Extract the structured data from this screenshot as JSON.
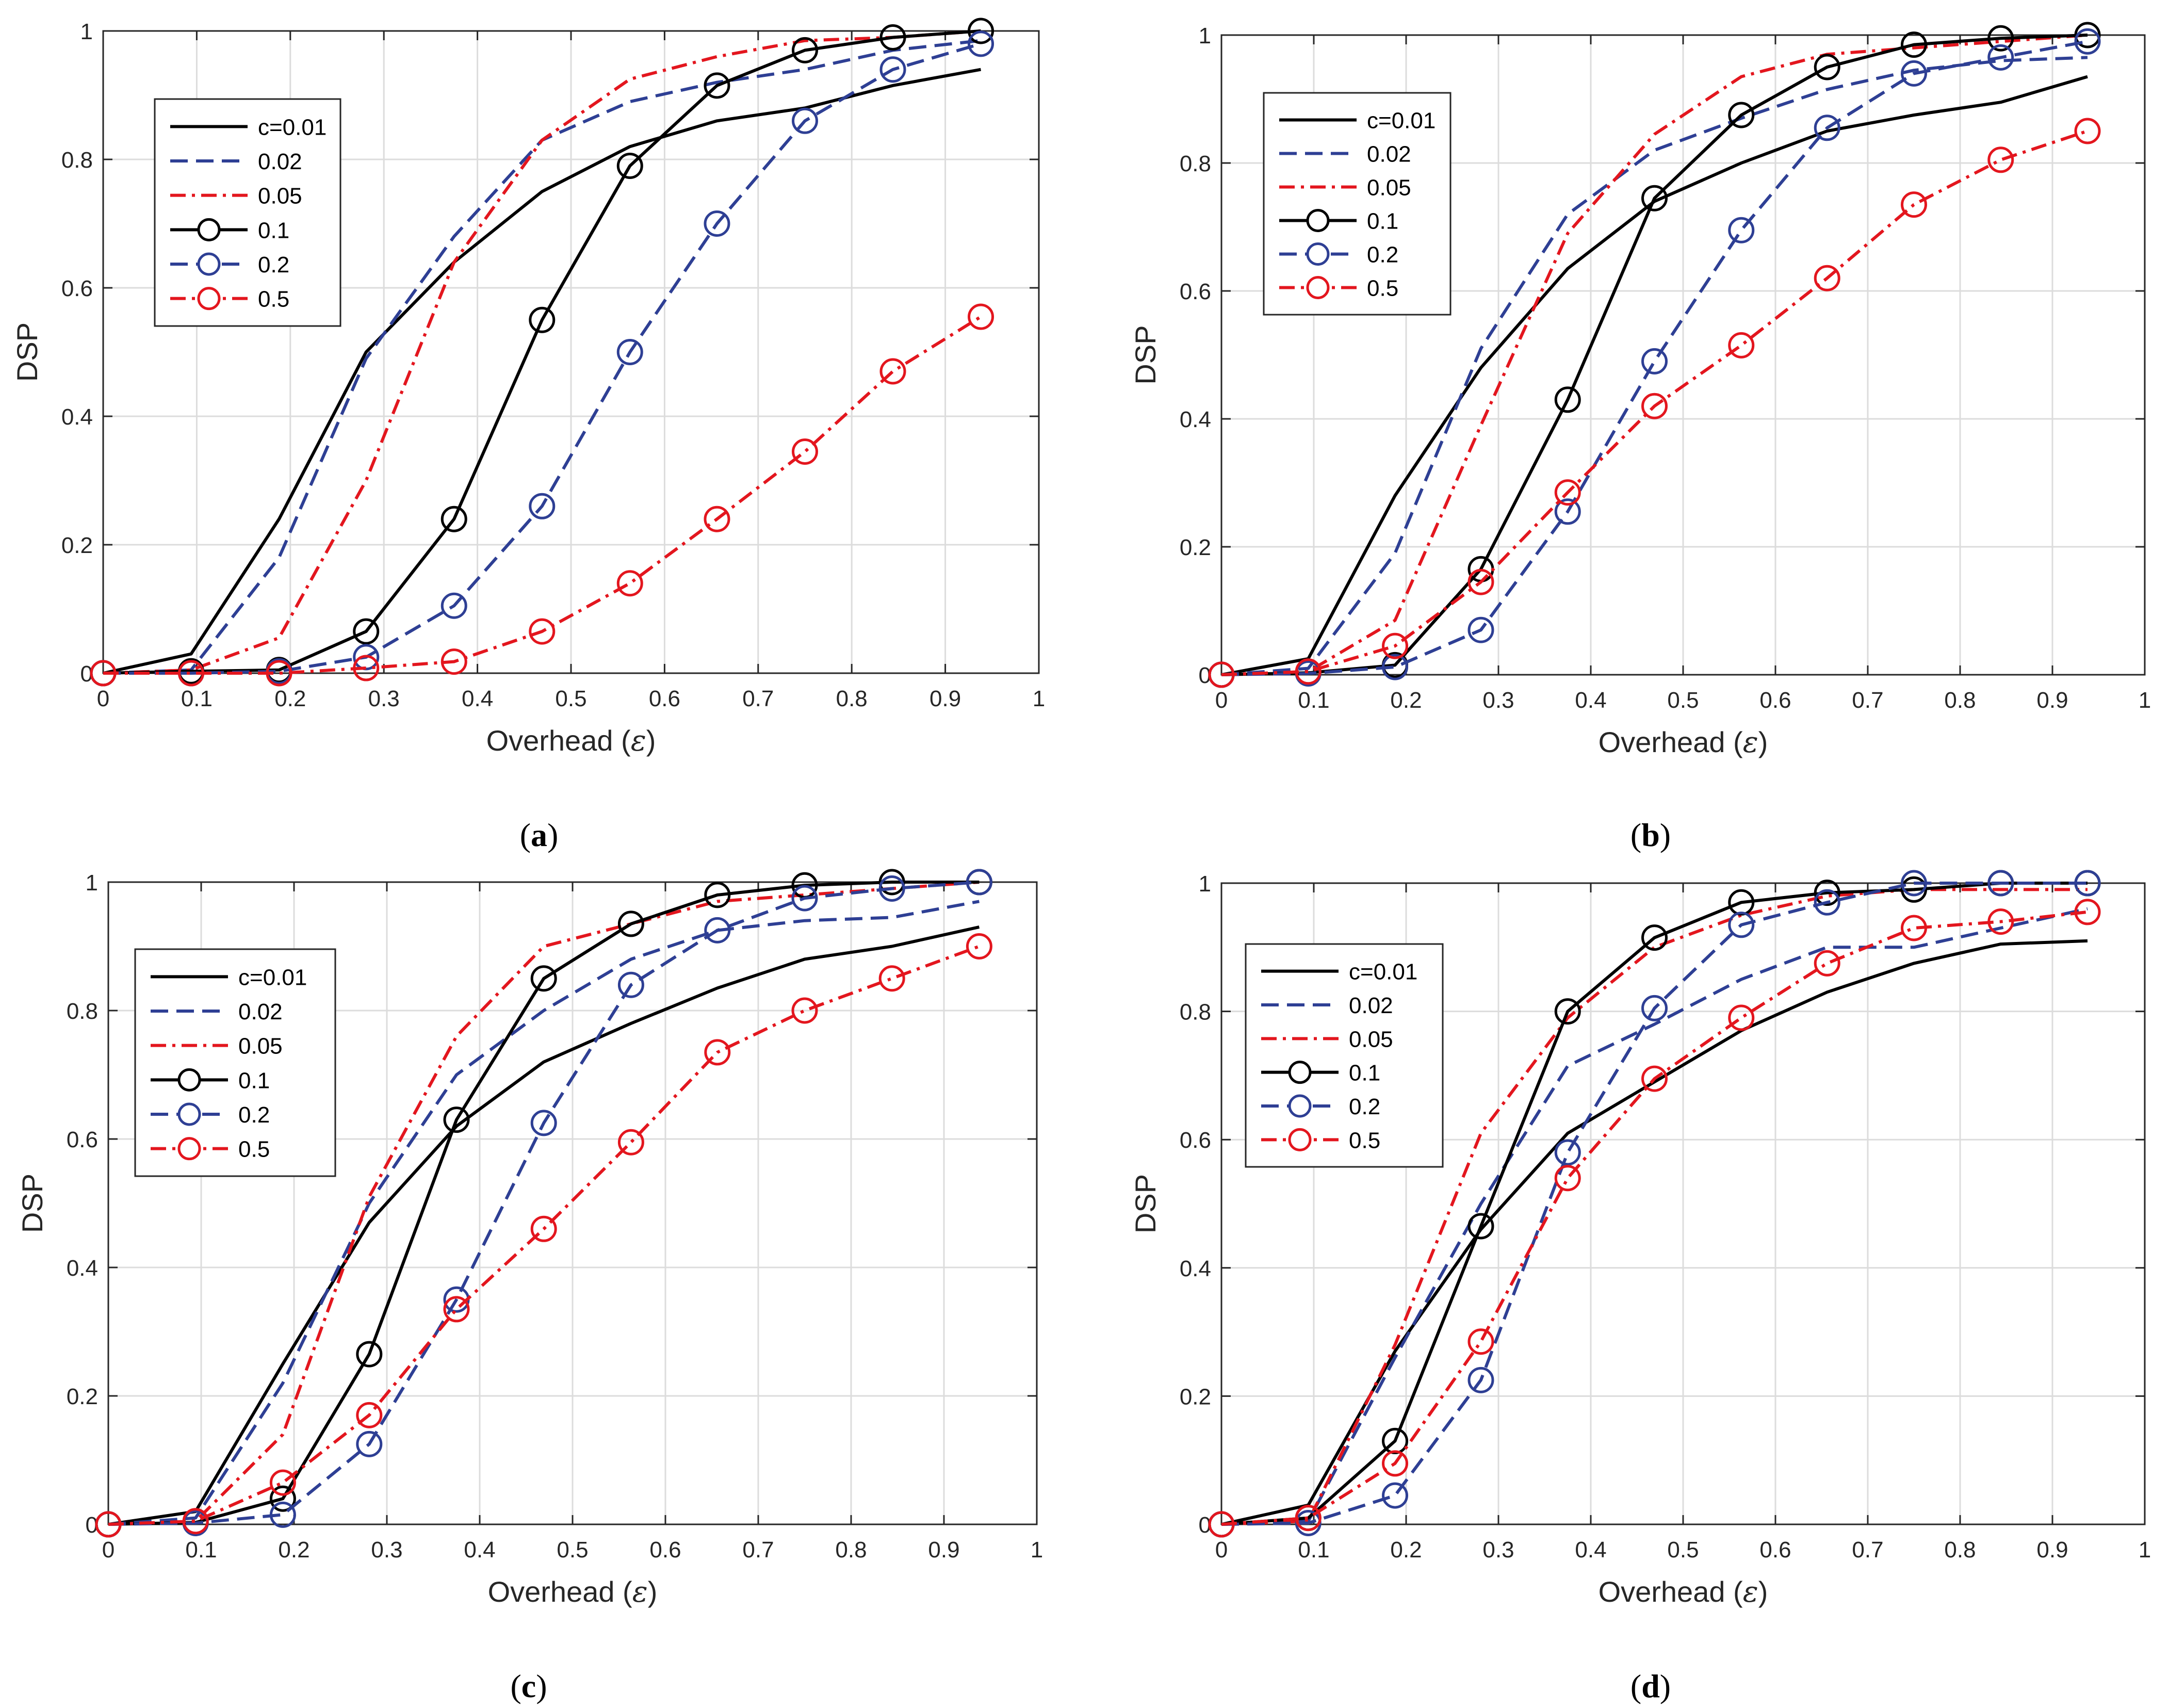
{
  "figure": {
    "colors": {
      "black": "#000000",
      "blue": "#2e3f94",
      "red": "#e3161e",
      "grid": "#dcdcdc",
      "axis": "#262626"
    }
  },
  "chart_data": [
    {
      "type": "line",
      "caption": "a",
      "xlabel": "Overhead (",
      "xlabel_symbol": "ε",
      "xlabel_close": ")",
      "ylabel": "DSP",
      "xlim": [
        0,
        1
      ],
      "ylim": [
        0,
        1
      ],
      "xticks": [
        "0",
        "0.1",
        "0.2",
        "0.3",
        "0.4",
        "0.5",
        "0.6",
        "0.7",
        "0.8",
        "0.9",
        "1"
      ],
      "yticks": [
        "0",
        "0.2",
        "0.4",
        "0.6",
        "0.8",
        "1"
      ],
      "grid": true,
      "legend_position": "upper-left",
      "x": [
        0,
        0.094,
        0.188,
        0.281,
        0.375,
        0.469,
        0.563,
        0.656,
        0.75,
        0.844,
        0.938
      ],
      "series": [
        {
          "name": "c=0.01",
          "color": "#000000",
          "dash": "solid",
          "marker": false,
          "values": [
            0,
            0.03,
            0.24,
            0.5,
            0.64,
            0.75,
            0.82,
            0.86,
            0.88,
            0.915,
            0.94
          ]
        },
        {
          "name": "0.02",
          "color": "#2e3f94",
          "dash": "dash",
          "marker": false,
          "values": [
            0,
            0.005,
            0.18,
            0.49,
            0.68,
            0.83,
            0.89,
            0.92,
            0.94,
            0.97,
            0.985
          ]
        },
        {
          "name": "0.05",
          "color": "#e3161e",
          "dash": "dashdot",
          "marker": false,
          "values": [
            0,
            0.005,
            0.055,
            0.3,
            0.64,
            0.83,
            0.925,
            0.96,
            0.985,
            0.99,
            1.0
          ]
        },
        {
          "name": "0.1",
          "color": "#000000",
          "dash": "solid",
          "marker": true,
          "values": [
            0,
            0.003,
            0.005,
            0.065,
            0.24,
            0.55,
            0.79,
            0.915,
            0.97,
            0.99,
            1.0
          ]
        },
        {
          "name": "0.2",
          "color": "#2e3f94",
          "dash": "dash",
          "marker": true,
          "values": [
            0,
            0,
            0.003,
            0.025,
            0.105,
            0.26,
            0.5,
            0.7,
            0.86,
            0.94,
            0.98
          ]
        },
        {
          "name": "0.5",
          "color": "#e3161e",
          "dash": "dashdot",
          "marker": true,
          "values": [
            0,
            0,
            0,
            0.008,
            0.018,
            0.065,
            0.14,
            0.24,
            0.345,
            0.47,
            0.555
          ]
        }
      ]
    },
    {
      "type": "line",
      "caption": "b",
      "xlabel": "Overhead (",
      "xlabel_symbol": "ε",
      "xlabel_close": ")",
      "ylabel": "DSP",
      "xlim": [
        0,
        1
      ],
      "ylim": [
        0,
        1
      ],
      "xticks": [
        "0",
        "0.1",
        "0.2",
        "0.3",
        "0.4",
        "0.5",
        "0.6",
        "0.7",
        "0.8",
        "0.9",
        "1"
      ],
      "yticks": [
        "0",
        "0.2",
        "0.4",
        "0.6",
        "0.8",
        "1"
      ],
      "grid": true,
      "legend_position": "upper-left",
      "x": [
        0,
        0.094,
        0.188,
        0.281,
        0.375,
        0.469,
        0.563,
        0.656,
        0.75,
        0.844,
        0.938
      ],
      "series": [
        {
          "name": "c=0.01",
          "color": "#000000",
          "dash": "solid",
          "marker": false,
          "values": [
            0,
            0.025,
            0.28,
            0.48,
            0.635,
            0.74,
            0.8,
            0.85,
            0.875,
            0.895,
            0.935
          ]
        },
        {
          "name": "0.02",
          "color": "#2e3f94",
          "dash": "dash",
          "marker": false,
          "values": [
            0,
            0.01,
            0.19,
            0.51,
            0.72,
            0.82,
            0.87,
            0.915,
            0.945,
            0.96,
            0.965
          ]
        },
        {
          "name": "0.05",
          "color": "#e3161e",
          "dash": "dashdot",
          "marker": false,
          "values": [
            0,
            0.005,
            0.085,
            0.39,
            0.69,
            0.845,
            0.935,
            0.97,
            0.98,
            0.99,
            1.0
          ]
        },
        {
          "name": "0.1",
          "color": "#000000",
          "dash": "solid",
          "marker": true,
          "values": [
            0,
            0.003,
            0.015,
            0.165,
            0.43,
            0.745,
            0.875,
            0.95,
            0.985,
            0.995,
            1.0
          ]
        },
        {
          "name": "0.2",
          "color": "#2e3f94",
          "dash": "dash",
          "marker": true,
          "values": [
            0,
            0.002,
            0.012,
            0.07,
            0.255,
            0.49,
            0.695,
            0.855,
            0.94,
            0.965,
            0.99
          ]
        },
        {
          "name": "0.5",
          "color": "#e3161e",
          "dash": "dashdot",
          "marker": true,
          "values": [
            0,
            0.005,
            0.045,
            0.145,
            0.285,
            0.42,
            0.515,
            0.62,
            0.735,
            0.805,
            0.85
          ]
        }
      ]
    },
    {
      "type": "line",
      "caption": "c",
      "xlabel": "Overhead (",
      "xlabel_symbol": "ε",
      "xlabel_close": ")",
      "ylabel": "DSP",
      "xlim": [
        0,
        1
      ],
      "ylim": [
        0,
        1
      ],
      "xticks": [
        "0",
        "0.1",
        "0.2",
        "0.3",
        "0.4",
        "0.5",
        "0.6",
        "0.7",
        "0.8",
        "0.9",
        "1"
      ],
      "yticks": [
        "0",
        "0.2",
        "0.4",
        "0.6",
        "0.8",
        "1"
      ],
      "grid": true,
      "legend_position": "upper-left",
      "x": [
        0,
        0.094,
        0.188,
        0.281,
        0.375,
        0.469,
        0.563,
        0.656,
        0.75,
        0.844,
        0.938
      ],
      "series": [
        {
          "name": "c=0.01",
          "color": "#000000",
          "dash": "solid",
          "marker": false,
          "values": [
            0,
            0.02,
            0.25,
            0.47,
            0.62,
            0.72,
            0.78,
            0.835,
            0.88,
            0.9,
            0.93
          ]
        },
        {
          "name": "0.02",
          "color": "#2e3f94",
          "dash": "dash",
          "marker": false,
          "values": [
            0,
            0.01,
            0.22,
            0.5,
            0.7,
            0.8,
            0.88,
            0.925,
            0.94,
            0.945,
            0.97
          ]
        },
        {
          "name": "0.05",
          "color": "#e3161e",
          "dash": "dashdot",
          "marker": false,
          "values": [
            0,
            0.005,
            0.14,
            0.51,
            0.76,
            0.9,
            0.935,
            0.97,
            0.98,
            0.99,
            1.0
          ]
        },
        {
          "name": "0.1",
          "color": "#000000",
          "dash": "solid",
          "marker": true,
          "values": [
            0,
            0.003,
            0.04,
            0.265,
            0.63,
            0.85,
            0.935,
            0.98,
            0.995,
            1.0,
            1.0
          ]
        },
        {
          "name": "0.2",
          "color": "#2e3f94",
          "dash": "dash",
          "marker": true,
          "values": [
            0,
            0.002,
            0.015,
            0.125,
            0.35,
            0.625,
            0.84,
            0.925,
            0.975,
            0.99,
            1.0
          ]
        },
        {
          "name": "0.5",
          "color": "#e3161e",
          "dash": "dashdot",
          "marker": true,
          "values": [
            0,
            0.005,
            0.065,
            0.17,
            0.335,
            0.46,
            0.595,
            0.735,
            0.8,
            0.85,
            0.9
          ]
        }
      ]
    },
    {
      "type": "line",
      "caption": "d",
      "xlabel": "Overhead (",
      "xlabel_symbol": "ε",
      "xlabel_close": ")",
      "ylabel": "DSP",
      "xlim": [
        0,
        1
      ],
      "ylim": [
        0,
        1
      ],
      "xticks": [
        "0",
        "0.1",
        "0.2",
        "0.3",
        "0.4",
        "0.5",
        "0.6",
        "0.7",
        "0.8",
        "0.9",
        "1"
      ],
      "yticks": [
        "0",
        "0.2",
        "0.4",
        "0.6",
        "0.8",
        "1"
      ],
      "grid": true,
      "legend_position": "upper-left",
      "x": [
        0,
        0.094,
        0.188,
        0.281,
        0.375,
        0.469,
        0.563,
        0.656,
        0.75,
        0.844,
        0.938
      ],
      "series": [
        {
          "name": "c=0.01",
          "color": "#000000",
          "dash": "solid",
          "marker": false,
          "values": [
            0,
            0.03,
            0.27,
            0.46,
            0.61,
            0.69,
            0.77,
            0.83,
            0.875,
            0.905,
            0.91
          ]
        },
        {
          "name": "0.02",
          "color": "#2e3f94",
          "dash": "dash",
          "marker": false,
          "values": [
            0,
            0.005,
            0.26,
            0.5,
            0.715,
            0.78,
            0.85,
            0.9,
            0.9,
            0.93,
            0.96
          ]
        },
        {
          "name": "0.05",
          "color": "#e3161e",
          "dash": "dashdot",
          "marker": false,
          "values": [
            0,
            0.005,
            0.28,
            0.61,
            0.79,
            0.9,
            0.95,
            0.98,
            0.99,
            0.99,
            0.99
          ]
        },
        {
          "name": "0.1",
          "color": "#000000",
          "dash": "solid",
          "marker": true,
          "values": [
            0,
            0.01,
            0.13,
            0.465,
            0.8,
            0.915,
            0.97,
            0.985,
            0.99,
            1.0,
            1.0
          ]
        },
        {
          "name": "0.2",
          "color": "#2e3f94",
          "dash": "dash",
          "marker": true,
          "values": [
            0,
            0.002,
            0.045,
            0.225,
            0.58,
            0.805,
            0.935,
            0.97,
            1.0,
            1.0,
            1.0
          ]
        },
        {
          "name": "0.5",
          "color": "#e3161e",
          "dash": "dashdot",
          "marker": true,
          "values": [
            0,
            0.01,
            0.095,
            0.285,
            0.54,
            0.695,
            0.79,
            0.875,
            0.93,
            0.94,
            0.955
          ]
        }
      ]
    }
  ]
}
